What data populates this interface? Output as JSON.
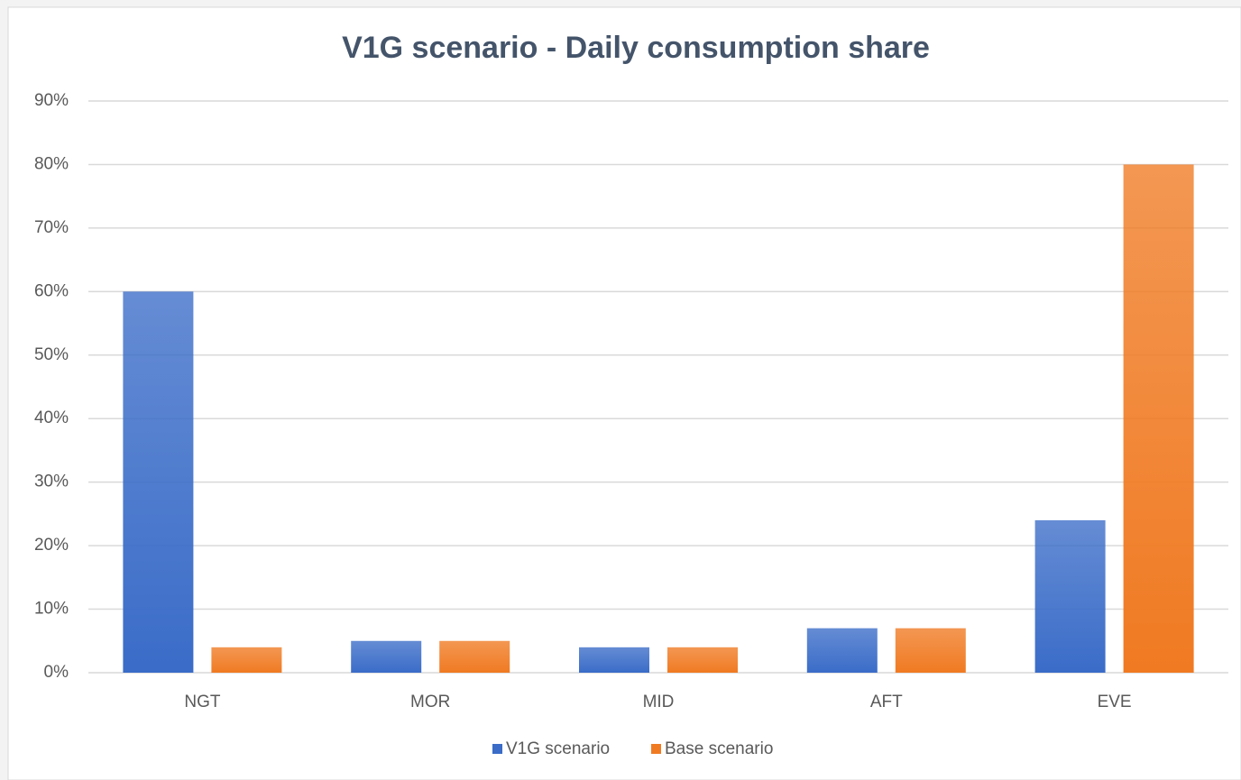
{
  "chart_data": {
    "type": "bar",
    "title": "V1G scenario - Daily consumption share",
    "categories": [
      "NGT",
      "MOR",
      "MID",
      "AFT",
      "EVE"
    ],
    "series": [
      {
        "name": "V1G scenario",
        "color": "#3a6cc8",
        "values": [
          60,
          5,
          4,
          7,
          24
        ]
      },
      {
        "name": "Base scenario",
        "color": "#f07a22",
        "values": [
          4,
          5,
          4,
          7,
          80
        ]
      }
    ],
    "ylim": [
      0,
      90
    ],
    "yticks": [
      {
        "value": 0,
        "label": "0%"
      },
      {
        "value": 10,
        "label": "10%"
      },
      {
        "value": 20,
        "label": "20%"
      },
      {
        "value": 30,
        "label": "30%"
      },
      {
        "value": 40,
        "label": "40%"
      },
      {
        "value": 50,
        "label": "50%"
      },
      {
        "value": 60,
        "label": "60%"
      },
      {
        "value": 70,
        "label": "70%"
      },
      {
        "value": 80,
        "label": "80%"
      },
      {
        "value": 90,
        "label": "90%"
      }
    ],
    "grid": true,
    "legend": "bottom"
  }
}
